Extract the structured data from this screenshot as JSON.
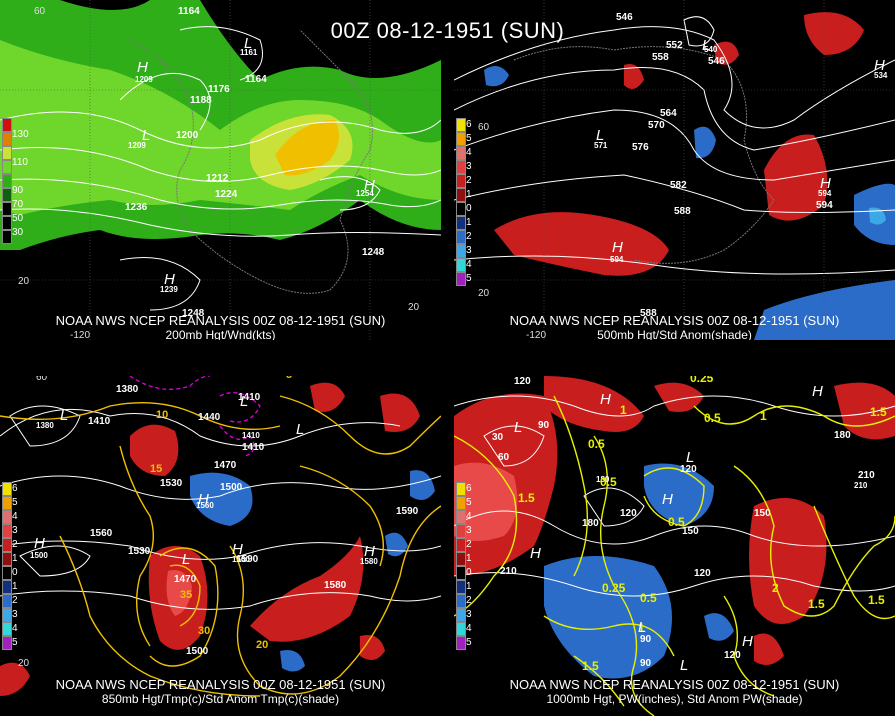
{
  "title": "00Z 08-12-1951 (SUN)",
  "colors": {
    "wind_light": "#2fae1a",
    "wind_mid": "#6fd62b",
    "wind_high": "#c9e23a",
    "wind_max": "#f0c000",
    "anom_pos": "#c81e1e",
    "anom_pos_light": "#e84a4a",
    "anom_neg": "#2a6cc8",
    "anom_neg_light": "#3ca8e8",
    "temp_contour": "#f0c000",
    "pw_contour": "#e8f000",
    "height_contour": "#ffffff",
    "cold_contour": "#e000e0"
  },
  "panels": [
    {
      "id": "200mb",
      "caption_line1": "NOAA NWS NCEP REANALYSIS 00Z 08-12-1951 (SUN)",
      "caption_line2": "200mb Hgt/Wnd(kts)",
      "legend": [
        "130",
        "110",
        "90",
        "70",
        "50",
        "30"
      ],
      "legend_colors": [
        "#d01010",
        "#e08000",
        "#c9e23a",
        "#6fd62b",
        "#2fae1a",
        "#106010"
      ],
      "height_labels": [
        "1164",
        "1161",
        "1164",
        "1176",
        "1188",
        "1209",
        "1200",
        "1209",
        "1212",
        "1224",
        "1236",
        "1254",
        "1248",
        "1239",
        "1248"
      ],
      "lat_labels": [
        "60",
        "20",
        "20"
      ],
      "lon_labels": [
        "-120"
      ],
      "lows": [
        "L",
        "L"
      ],
      "highs": [
        "H",
        "H",
        "H"
      ]
    },
    {
      "id": "500mb",
      "caption_line1": "NOAA NWS NCEP REANALYSIS 00Z 08-12-1951 (SUN)",
      "caption_line2": "500mb Hgt/Std Anom(shade)",
      "legend": [
        "6",
        "5",
        "4",
        "3",
        "2",
        "1",
        "0",
        "1",
        "2",
        "3",
        "4",
        "5"
      ],
      "legend_colors": [
        "#f0e000",
        "#f0a000",
        "#e07070",
        "#e04040",
        "#c82020",
        "#901010",
        "#000000",
        "#103080",
        "#2a6cc8",
        "#3ca8e8",
        "#30d8d8",
        "#a020c0"
      ],
      "height_labels": [
        "546",
        "552",
        "558",
        "540",
        "546",
        "564",
        "570",
        "576",
        "571",
        "582",
        "588",
        "594",
        "594",
        "534",
        "594",
        "588"
      ],
      "lat_labels": [
        "60",
        "20"
      ],
      "lon_labels": [
        "-120"
      ],
      "lows": [
        "L",
        "L"
      ],
      "highs": [
        "H",
        "H",
        "H"
      ]
    },
    {
      "id": "850mb",
      "caption_line1": "NOAA NWS NCEP REANALYSIS 00Z 08-12-1951 (SUN)",
      "caption_line2": "850mb Hgt/Tmp(c)/Std Anom Tmp(c)(shade)",
      "legend": [
        "6",
        "5",
        "4",
        "3",
        "2",
        "1",
        "0",
        "1",
        "2",
        "3",
        "4",
        "5"
      ],
      "legend_colors": [
        "#f0e000",
        "#f0a000",
        "#e07070",
        "#e04040",
        "#c82020",
        "#901010",
        "#000000",
        "#103080",
        "#2a6cc8",
        "#3ca8e8",
        "#30d8d8",
        "#a020c0"
      ],
      "height_labels": [
        "1380",
        "1380",
        "1410",
        "1410",
        "1440",
        "1410",
        "1410",
        "1470",
        "1530",
        "1500",
        "1560",
        "1500",
        "1560",
        "1530",
        "1470",
        "1560",
        "1590",
        "1580",
        "1580",
        "1500",
        "1590"
      ],
      "temp_labels": [
        "10",
        "15",
        "5",
        "35",
        "30",
        "20"
      ],
      "lat_labels": [
        "60",
        "20"
      ],
      "lows": [
        "L",
        "L",
        "L",
        "L"
      ],
      "highs": [
        "H",
        "H",
        "H",
        "H"
      ]
    },
    {
      "id": "1000mb",
      "caption_line1": "NOAA NWS NCEP REANALYSIS 00Z 08-12-1951 (SUN)",
      "caption_line2": "1000mb Hgt, PW(inches), Std Anom PW(shade)",
      "legend": [
        "6",
        "5",
        "4",
        "3",
        "2",
        "1",
        "0",
        "1",
        "2",
        "3",
        "4",
        "5"
      ],
      "legend_colors": [
        "#f0e000",
        "#f0a000",
        "#e07070",
        "#e04040",
        "#c82020",
        "#901010",
        "#000000",
        "#103080",
        "#2a6cc8",
        "#3ca8e8",
        "#30d8d8",
        "#a020c0"
      ],
      "height_labels": [
        "120",
        "30",
        "60",
        "90",
        "120",
        "180",
        "210",
        "120",
        "180",
        "150",
        "150",
        "210",
        "120",
        "90",
        "90",
        "180",
        "210",
        "120"
      ],
      "pw_labels": [
        "0.25",
        "0.5",
        "1",
        "0.5",
        "1.5",
        "0.5",
        "0.5",
        "0.25",
        "0.5",
        "1",
        "1.5",
        "1.5",
        "1.5",
        "2",
        "1.5",
        "1"
      ],
      "lows": [
        "L",
        "L",
        "L",
        "L"
      ],
      "highs": [
        "H",
        "H",
        "H",
        "H",
        "H"
      ]
    }
  ]
}
